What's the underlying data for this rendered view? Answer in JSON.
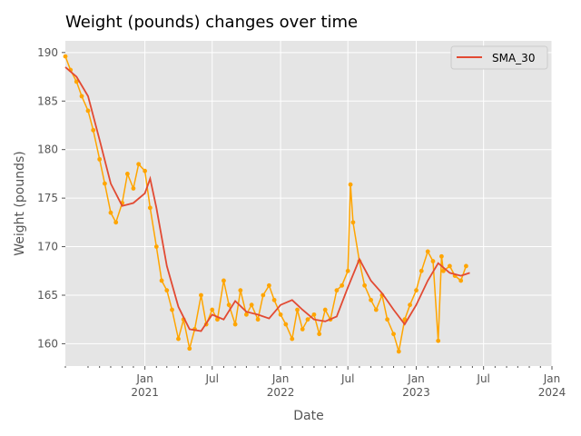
{
  "chart_data": {
    "type": "line",
    "title": "Weight (pounds) changes over time",
    "xlabel": "Date",
    "ylabel": "Weight (pounds)",
    "xlim": [
      "2020-06-01",
      "2024-01-01"
    ],
    "ylim": [
      157.7,
      191.2
    ],
    "grid": true,
    "legend_position": "top-right",
    "colors": {
      "background": "#e5e5e5",
      "grid": "#ffffff",
      "raw": "#ffa500",
      "sma": "#e24a33"
    },
    "yticks": [
      160,
      165,
      170,
      175,
      180,
      185,
      190
    ],
    "xticks": [
      {
        "date": "2021-01-01",
        "label": "Jan",
        "year": "2021"
      },
      {
        "date": "2021-07-01",
        "label": "Jul",
        "year": ""
      },
      {
        "date": "2022-01-01",
        "label": "Jan",
        "year": "2022"
      },
      {
        "date": "2022-07-01",
        "label": "Jul",
        "year": ""
      },
      {
        "date": "2023-01-01",
        "label": "Jan",
        "year": "2023"
      },
      {
        "date": "2023-07-01",
        "label": "Jul",
        "year": ""
      },
      {
        "date": "2024-01-01",
        "label": "Jan",
        "year": "2024"
      }
    ],
    "series": [
      {
        "name": "",
        "style": "line+markers",
        "x": [
          "2020-06-01",
          "2020-06-15",
          "2020-07-01",
          "2020-07-15",
          "2020-08-01",
          "2020-08-15",
          "2020-09-01",
          "2020-09-15",
          "2020-10-01",
          "2020-10-15",
          "2020-11-01",
          "2020-11-15",
          "2020-12-01",
          "2020-12-15",
          "2021-01-01",
          "2021-01-15",
          "2021-02-01",
          "2021-02-15",
          "2021-03-01",
          "2021-03-15",
          "2021-04-01",
          "2021-04-15",
          "2021-05-01",
          "2021-05-15",
          "2021-06-01",
          "2021-06-15",
          "2021-07-01",
          "2021-07-15",
          "2021-08-01",
          "2021-08-15",
          "2021-09-01",
          "2021-09-15",
          "2021-10-01",
          "2021-10-15",
          "2021-11-01",
          "2021-11-15",
          "2021-12-01",
          "2021-12-15",
          "2022-01-01",
          "2022-01-15",
          "2022-02-01",
          "2022-02-15",
          "2022-03-01",
          "2022-03-15",
          "2022-04-01",
          "2022-04-15",
          "2022-05-01",
          "2022-05-15",
          "2022-06-01",
          "2022-06-15",
          "2022-07-01",
          "2022-07-08",
          "2022-07-15",
          "2022-08-01",
          "2022-08-15",
          "2022-09-01",
          "2022-09-15",
          "2022-10-01",
          "2022-10-15",
          "2022-11-01",
          "2022-11-15",
          "2022-12-01",
          "2022-12-15",
          "2023-01-01",
          "2023-01-15",
          "2023-02-01",
          "2023-02-15",
          "2023-03-01",
          "2023-03-10",
          "2023-03-15",
          "2023-04-01",
          "2023-04-15",
          "2023-05-01",
          "2023-05-15"
        ],
        "values": [
          189.6,
          188.2,
          187.0,
          185.5,
          184.0,
          182.0,
          179.0,
          176.5,
          173.5,
          172.5,
          174.5,
          177.5,
          176.0,
          178.5,
          177.8,
          174.0,
          170.0,
          166.5,
          165.5,
          163.5,
          160.5,
          162.5,
          159.5,
          161.5,
          165.0,
          162.0,
          163.5,
          162.5,
          166.5,
          164.0,
          162.0,
          165.5,
          163.0,
          164.0,
          162.5,
          165.0,
          166.0,
          164.5,
          163.0,
          162.0,
          160.5,
          163.5,
          161.5,
          162.5,
          163.0,
          161.0,
          163.5,
          162.5,
          165.5,
          166.0,
          167.5,
          176.4,
          172.5,
          168.5,
          166.0,
          164.5,
          163.5,
          165.0,
          162.5,
          161.0,
          159.2,
          162.5,
          164.0,
          165.5,
          167.5,
          169.5,
          168.5,
          160.3,
          169.0,
          167.5,
          168.0,
          167.0,
          166.5,
          168.0
        ]
      },
      {
        "name": "SMA_30",
        "style": "line",
        "x": [
          "2020-06-01",
          "2020-07-01",
          "2020-08-01",
          "2020-09-01",
          "2020-10-01",
          "2020-11-01",
          "2020-12-01",
          "2021-01-01",
          "2021-01-15",
          "2021-02-01",
          "2021-03-01",
          "2021-04-01",
          "2021-05-01",
          "2021-06-01",
          "2021-07-01",
          "2021-08-01",
          "2021-09-01",
          "2021-10-01",
          "2021-11-01",
          "2021-12-01",
          "2022-01-01",
          "2022-02-01",
          "2022-03-01",
          "2022-04-01",
          "2022-05-01",
          "2022-06-01",
          "2022-07-01",
          "2022-08-01",
          "2022-09-01",
          "2022-10-01",
          "2022-11-01",
          "2022-12-01",
          "2023-01-01",
          "2023-02-01",
          "2023-03-01",
          "2023-04-01",
          "2023-05-01",
          "2023-05-25"
        ],
        "values": [
          188.5,
          187.5,
          185.5,
          181.0,
          176.5,
          174.2,
          174.5,
          175.5,
          177.0,
          174.0,
          168.0,
          163.8,
          161.5,
          161.3,
          163.0,
          162.5,
          164.4,
          163.3,
          163.0,
          162.6,
          164.0,
          164.5,
          163.5,
          162.5,
          162.3,
          162.8,
          165.8,
          168.7,
          166.5,
          165.2,
          163.5,
          162.0,
          164.0,
          166.5,
          168.3,
          167.3,
          167.0,
          167.3
        ]
      }
    ]
  }
}
